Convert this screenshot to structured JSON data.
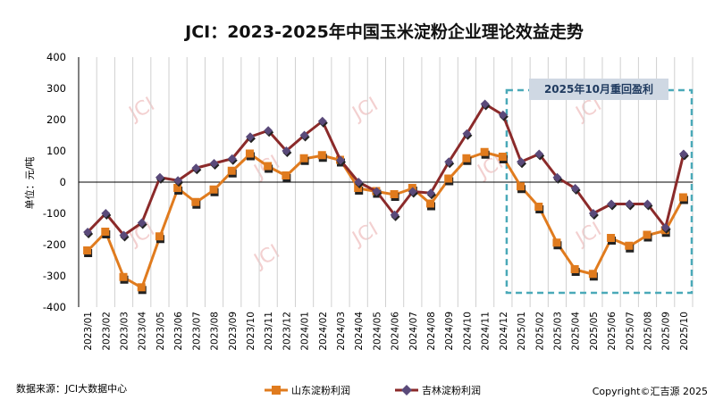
{
  "chart_data": {
    "type": "line",
    "title": "JCI：2023-2025年中国玉米淀粉企业理论效益走势",
    "ylabel": "单位：元/吨",
    "xlabel": "",
    "ylim": [
      -400,
      400
    ],
    "yticks": [
      400,
      300,
      200,
      100,
      0,
      -100,
      -200,
      -300,
      -400
    ],
    "grid": "vertical-only",
    "categories": [
      "2023/01",
      "2023/02",
      "2023/03",
      "2023/04",
      "2023/05",
      "2023/06",
      "2023/07",
      "2023/08",
      "2023/09",
      "2023/10",
      "2023/11",
      "2023/12",
      "2024/01",
      "2024/02",
      "2024/03",
      "2024/04",
      "2024/05",
      "2024/06",
      "2024/07",
      "2024/08",
      "2024/09",
      "2024/10",
      "2024/11",
      "2024/12",
      "2025/01",
      "2025/02",
      "2025/03",
      "2025/04",
      "2025/05",
      "2025/06",
      "2025/07",
      "2025/08",
      "2025/09",
      "2025/10"
    ],
    "series": [
      {
        "name": "山东淀粉利润",
        "color": "#e07b1e",
        "marker": "square",
        "values": [
          -220,
          -160,
          -305,
          -338,
          -175,
          -20,
          -65,
          -25,
          35,
          90,
          50,
          20,
          75,
          85,
          70,
          -20,
          -30,
          -40,
          -20,
          -70,
          10,
          75,
          95,
          80,
          -15,
          -80,
          -195,
          -280,
          -295,
          -180,
          -205,
          -170,
          -155,
          -50
        ]
      },
      {
        "name": "吉林淀粉利润",
        "color": "#8b2a2a",
        "marker": "diamond",
        "values": [
          -160,
          -100,
          -170,
          -130,
          15,
          5,
          45,
          60,
          75,
          145,
          165,
          100,
          150,
          195,
          70,
          0,
          -30,
          -105,
          -30,
          -35,
          65,
          155,
          250,
          215,
          65,
          90,
          15,
          -20,
          -100,
          -70,
          -70,
          -70,
          -145,
          90
        ]
      }
    ],
    "annotation": "2025年10月重回盈利",
    "legend": {
      "position": "bottom",
      "items": [
        "山东淀粉利润",
        "吉林淀粉利润"
      ]
    }
  },
  "watermark": "JCI",
  "footer": {
    "source": "数据来源：JCI大数据中心",
    "copyright": "Copyright©汇吉源 2025"
  },
  "colors": {
    "background": "#ffffff",
    "axis": "#000000",
    "grid": "#d0d0d0",
    "annotation_box": "#4aa9b8",
    "annotation_label_bg": "#cfd8e3"
  }
}
